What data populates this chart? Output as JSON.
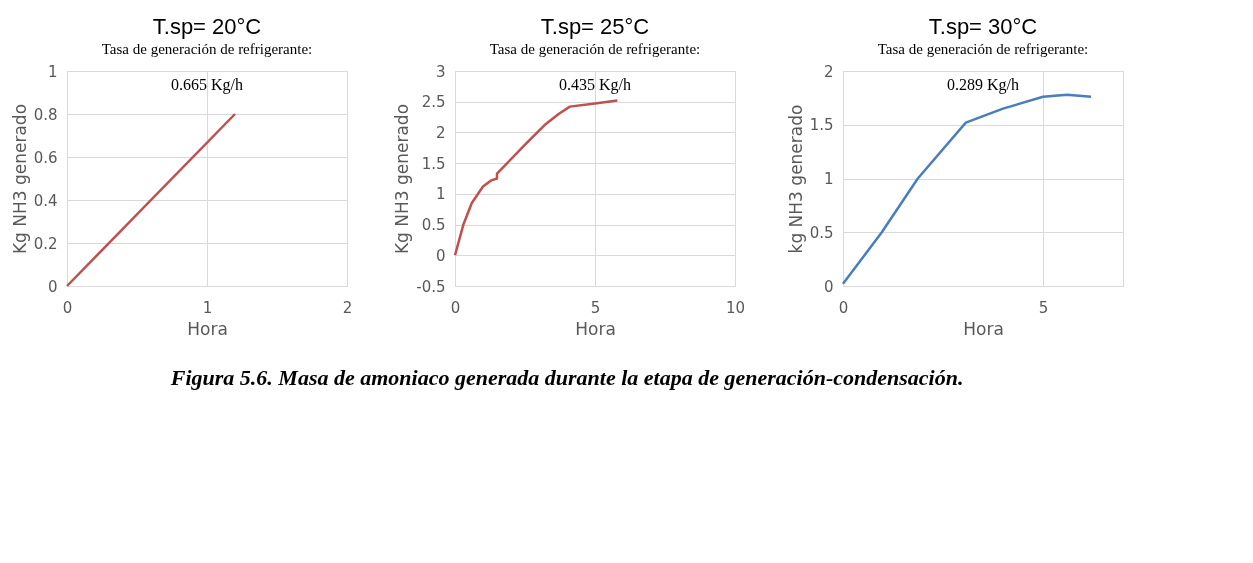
{
  "chart_data": [
    {
      "type": "line",
      "title": "T.sp= 20°C",
      "subtitle": "Tasa de generación de refrigerante:",
      "xlabel": "Hora",
      "ylabel": "Kg NH3 generado",
      "annotations": [
        "0.665 Kg/h"
      ],
      "xlim": [
        0,
        2
      ],
      "xticks": [
        0,
        1,
        2
      ],
      "ylim": [
        0,
        1
      ],
      "yticks": [
        0,
        0.2,
        0.4,
        0.6,
        0.8,
        1
      ],
      "grid": true,
      "series": [
        {
          "color": "#c0504d",
          "x": [
            0,
            1.2
          ],
          "values": [
            0,
            0.8
          ]
        }
      ]
    },
    {
      "type": "line",
      "title": "T.sp= 25°C",
      "subtitle": "Tasa de generación de refrigerante:",
      "xlabel": "Hora",
      "ylabel": "Kg NH3 generado",
      "annotations": [
        "0.435 Kg/h"
      ],
      "xlim": [
        0,
        10
      ],
      "xticks": [
        0,
        5,
        10
      ],
      "ylim": [
        -0.5,
        3
      ],
      "yticks": [
        -0.5,
        0,
        0.5,
        1,
        1.5,
        2,
        2.5,
        3
      ],
      "grid": true,
      "series": [
        {
          "color": "#c0504d",
          "x": [
            0,
            0.3,
            0.6,
            1.0,
            1.3,
            1.5,
            1.5,
            2.5,
            3.2,
            3.7,
            4.1,
            5.0,
            5.8
          ],
          "values": [
            0,
            0.5,
            0.85,
            1.12,
            1.22,
            1.25,
            1.33,
            1.8,
            2.12,
            2.3,
            2.42,
            2.47,
            2.52
          ]
        }
      ]
    },
    {
      "type": "line",
      "title": "T.sp= 30°C",
      "subtitle": "Tasa de generación de refrigerante:",
      "xlabel": "Hora",
      "ylabel": "kg NH3 generado",
      "annotations": [
        "0.289 Kg/h",
        "Figura 5.6. Masa de amoniaco generada durante la etapa de generación-condensación."
      ],
      "xlim": [
        0,
        7
      ],
      "xticks": [
        0,
        5
      ],
      "ylim": [
        0,
        2
      ],
      "yticks": [
        0,
        0.5,
        1,
        1.5,
        2
      ],
      "grid": true,
      "series": [
        {
          "color": "#4a7ebb",
          "x": [
            0,
            0.97,
            1.87,
            3.07,
            4.0,
            5.0,
            5.6,
            6.2
          ],
          "values": [
            0.02,
            0.5,
            1.0,
            1.52,
            1.65,
            1.76,
            1.78,
            1.76
          ]
        }
      ]
    }
  ]
}
